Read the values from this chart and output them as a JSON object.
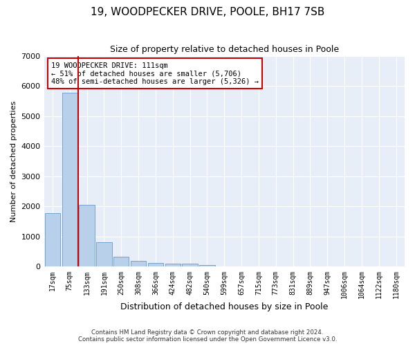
{
  "title": "19, WOODPECKER DRIVE, POOLE, BH17 7SB",
  "subtitle": "Size of property relative to detached houses in Poole",
  "xlabel": "Distribution of detached houses by size in Poole",
  "ylabel": "Number of detached properties",
  "bar_color": "#b8d0ea",
  "bar_edge_color": "#6699cc",
  "background_color": "#e8eef8",
  "grid_color": "#ffffff",
  "vline_color": "#cc0000",
  "vline_x": 1.5,
  "annotation_text": "19 WOODPECKER DRIVE: 111sqm\n← 51% of detached houses are smaller (5,706)\n48% of semi-detached houses are larger (5,326) →",
  "annotation_box_color": "#cc0000",
  "categories": [
    "17sqm",
    "75sqm",
    "133sqm",
    "191sqm",
    "250sqm",
    "308sqm",
    "366sqm",
    "424sqm",
    "482sqm",
    "540sqm",
    "599sqm",
    "657sqm",
    "715sqm",
    "773sqm",
    "831sqm",
    "889sqm",
    "947sqm",
    "1006sqm",
    "1064sqm",
    "1122sqm",
    "1180sqm"
  ],
  "values": [
    1780,
    5780,
    2060,
    820,
    340,
    185,
    115,
    100,
    95,
    60,
    0,
    0,
    0,
    0,
    0,
    0,
    0,
    0,
    0,
    0,
    0
  ],
  "ylim": [
    0,
    7000
  ],
  "yticks": [
    0,
    1000,
    2000,
    3000,
    4000,
    5000,
    6000,
    7000
  ],
  "footer_line1": "Contains HM Land Registry data © Crown copyright and database right 2024.",
  "footer_line2": "Contains public sector information licensed under the Open Government Licence v3.0."
}
